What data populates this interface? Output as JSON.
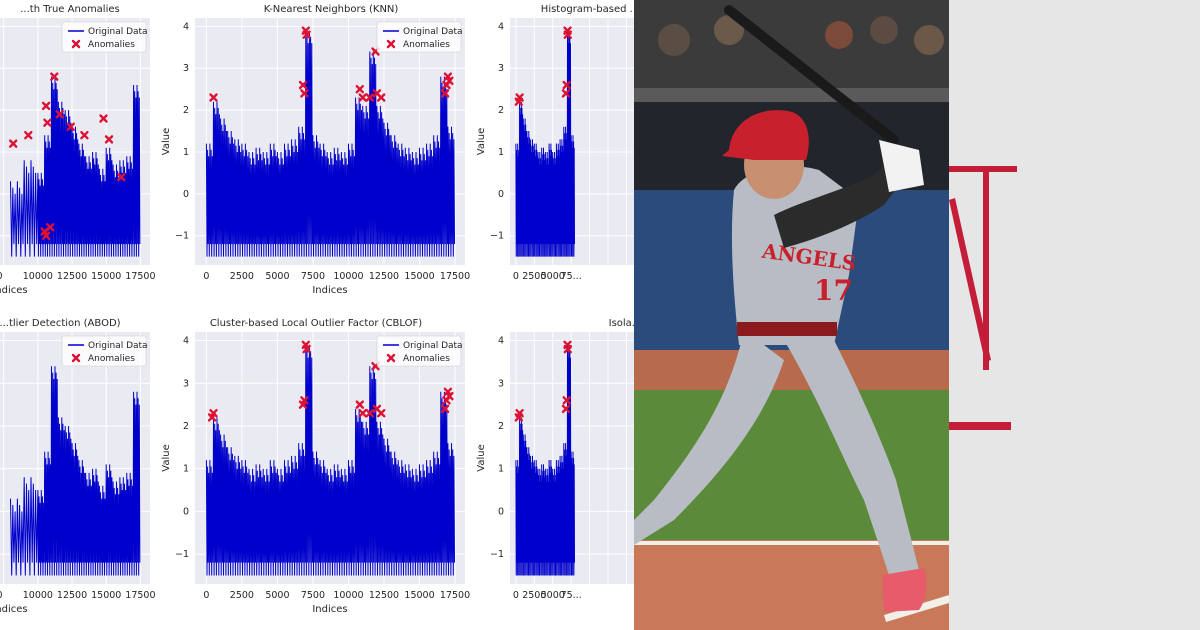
{
  "charts_panel": {
    "background": "#ffffff",
    "plot_background": "#eaeaf2",
    "grid_color": "#ffffff",
    "line_color": "#0000cc",
    "anomaly_color": "#dd1133"
  },
  "chart_data": [
    {
      "type": "line",
      "title": "...th True Anomalies",
      "xlabel": "Indices",
      "ylabel": "",
      "x_ticks": [
        "...00",
        "10000",
        "12500",
        "15000",
        "17500"
      ],
      "y_ticks": [],
      "legend": {
        "entries": [
          "Original Data",
          "Anomalies"
        ],
        "placement": "top-right"
      },
      "series": [
        {
          "name": "Original Data",
          "x": [
            8000,
            9000,
            10000,
            10500,
            11000,
            11500,
            12000,
            12500,
            13000,
            13500,
            14000,
            14500,
            15000,
            15500,
            16000,
            16500,
            17000,
            17500
          ],
          "values": [
            0.3,
            0.8,
            0.5,
            1.4,
            2.8,
            2.2,
            2.0,
            1.6,
            1.2,
            0.9,
            1.0,
            0.6,
            1.1,
            0.7,
            0.8,
            0.9,
            2.6,
            0.4
          ]
        },
        {
          "name": "Anomalies",
          "x": [
            8200,
            9300,
            10600,
            10700,
            11200,
            11600,
            12400,
            13400,
            14800,
            15200,
            16100,
            10900,
            10500,
            10600
          ],
          "values": [
            1.2,
            1.4,
            2.1,
            1.7,
            2.8,
            1.9,
            1.6,
            1.4,
            1.8,
            1.3,
            0.4,
            -0.8,
            -0.9,
            -1.0
          ]
        }
      ]
    },
    {
      "type": "line",
      "title": "K-Nearest Neighbors (KNN)",
      "xlabel": "Indices",
      "ylabel": "Value",
      "xlim": [
        -800,
        18200
      ],
      "ylim": [
        -1.7,
        4.2
      ],
      "x_ticks": [
        "0",
        "2500",
        "5000",
        "7500",
        "10000",
        "12500",
        "15000",
        "17500"
      ],
      "y_ticks": [
        "−1",
        "0",
        "1",
        "2",
        "3",
        "4"
      ],
      "legend": {
        "entries": [
          "Original Data",
          "Anomalies"
        ],
        "placement": "top-right"
      },
      "series": [
        {
          "name": "Original Data",
          "x": [
            0,
            500,
            1000,
            1500,
            2000,
            2500,
            3000,
            3500,
            4000,
            4500,
            5000,
            5500,
            6000,
            6500,
            7000,
            7500,
            8000,
            8500,
            9000,
            9500,
            10000,
            10500,
            11000,
            11500,
            12000,
            12500,
            13000,
            13500,
            14000,
            14500,
            15000,
            15500,
            16000,
            16500,
            17000,
            17500
          ],
          "values": [
            1.2,
            2.2,
            1.8,
            1.5,
            1.3,
            1.2,
            1.0,
            1.1,
            1.0,
            1.2,
            1.0,
            1.2,
            1.3,
            1.6,
            3.9,
            1.4,
            1.2,
            1.0,
            1.1,
            1.0,
            1.2,
            2.3,
            2.1,
            3.4,
            2.1,
            1.7,
            1.4,
            1.2,
            1.1,
            1.0,
            1.1,
            1.2,
            1.4,
            2.8,
            1.6,
            1.0
          ]
        },
        {
          "name": "Anomalies",
          "x": [
            500,
            6800,
            6900,
            7000,
            7050,
            10800,
            11000,
            11500,
            11900,
            12000,
            12300,
            16800,
            16900,
            17000,
            17100
          ],
          "values": [
            2.3,
            2.6,
            2.4,
            3.9,
            3.8,
            2.5,
            2.3,
            2.3,
            3.4,
            2.4,
            2.3,
            2.4,
            2.6,
            2.8,
            2.7
          ]
        }
      ]
    },
    {
      "type": "line",
      "title": "Histogram-based ...",
      "xlabel": "",
      "ylabel": "Value",
      "xlim": [
        -800,
        18200
      ],
      "ylim": [
        -1.7,
        4.2
      ],
      "x_ticks": [
        "0",
        "2500",
        "5000",
        "75..."
      ],
      "y_ticks": [
        "−1",
        "0",
        "1",
        "2",
        "3",
        "4"
      ],
      "legend": {
        "entries": [],
        "placement": "top-right"
      },
      "series": [
        {
          "name": "Original Data",
          "x": [
            0,
            500,
            1000,
            1500,
            2000,
            2500,
            3000,
            3500,
            4000,
            4500,
            5000,
            5500,
            6000,
            6500,
            7000,
            7500,
            8000
          ],
          "values": [
            1.2,
            2.2,
            1.8,
            1.5,
            1.3,
            1.2,
            1.0,
            1.1,
            1.0,
            1.2,
            1.0,
            1.2,
            1.3,
            1.6,
            3.9,
            1.4,
            1.2
          ]
        },
        {
          "name": "Anomalies",
          "x": [
            400,
            500,
            6800,
            6900,
            7000,
            7050
          ],
          "values": [
            2.2,
            2.3,
            2.4,
            2.6,
            3.9,
            3.8
          ]
        }
      ]
    },
    {
      "type": "line",
      "title": "...tlier Detection (ABOD)",
      "xlabel": "Indices",
      "ylabel": "",
      "x_ticks": [
        "...00",
        "10000",
        "12500",
        "15000",
        "17500"
      ],
      "y_ticks": [],
      "legend": {
        "entries": [
          "Original Data",
          "Anomalies"
        ],
        "placement": "top-right"
      },
      "series": [
        {
          "name": "Original Data",
          "x": [
            8000,
            9000,
            10000,
            10500,
            11000,
            11500,
            12000,
            12500,
            13000,
            13500,
            14000,
            14500,
            15000,
            15500,
            16000,
            16500,
            17000,
            17500
          ],
          "values": [
            0.3,
            0.8,
            0.5,
            1.4,
            3.4,
            2.2,
            2.0,
            1.6,
            1.2,
            0.9,
            1.0,
            0.6,
            1.1,
            0.7,
            0.8,
            0.9,
            2.8,
            0.4
          ]
        }
      ]
    },
    {
      "type": "line",
      "title": "Cluster-based Local Outlier Factor (CBLOF)",
      "xlabel": "Indices",
      "ylabel": "Value",
      "xlim": [
        -800,
        18200
      ],
      "ylim": [
        -1.7,
        4.2
      ],
      "x_ticks": [
        "0",
        "2500",
        "5000",
        "7500",
        "10000",
        "12500",
        "15000",
        "17500"
      ],
      "y_ticks": [
        "−1",
        "0",
        "1",
        "2",
        "3",
        "4"
      ],
      "legend": {
        "entries": [
          "Original Data",
          "Anomalies"
        ],
        "placement": "top-right"
      },
      "series": [
        {
          "name": "Original Data",
          "x": [
            0,
            500,
            1000,
            1500,
            2000,
            2500,
            3000,
            3500,
            4000,
            4500,
            5000,
            5500,
            6000,
            6500,
            7000,
            7500,
            8000,
            8500,
            9000,
            9500,
            10000,
            10500,
            11000,
            11500,
            12000,
            12500,
            13000,
            13500,
            14000,
            14500,
            15000,
            15500,
            16000,
            16500,
            17000,
            17500
          ],
          "values": [
            1.2,
            2.2,
            1.8,
            1.5,
            1.3,
            1.2,
            1.0,
            1.1,
            1.0,
            1.2,
            1.0,
            1.2,
            1.3,
            1.6,
            3.9,
            1.4,
            1.2,
            1.0,
            1.1,
            1.0,
            1.2,
            2.4,
            2.1,
            3.4,
            2.1,
            1.7,
            1.4,
            1.2,
            1.1,
            1.0,
            1.1,
            1.2,
            1.4,
            2.8,
            1.6,
            1.0
          ]
        },
        {
          "name": "Anomalies",
          "x": [
            400,
            500,
            6800,
            6900,
            7000,
            7050,
            10800,
            11000,
            11500,
            11900,
            12000,
            12300,
            16800,
            16900,
            17000,
            17100
          ],
          "values": [
            2.2,
            2.3,
            2.5,
            2.6,
            3.9,
            3.8,
            2.5,
            2.3,
            2.3,
            3.4,
            2.4,
            2.3,
            2.4,
            2.6,
            2.8,
            2.7
          ]
        }
      ]
    },
    {
      "type": "line",
      "title": "Isola...",
      "xlabel": "",
      "ylabel": "Value",
      "xlim": [
        -800,
        18200
      ],
      "ylim": [
        -1.7,
        4.2
      ],
      "x_ticks": [
        "0",
        "2500",
        "5000",
        "75..."
      ],
      "y_ticks": [
        "−1",
        "0",
        "1",
        "2",
        "3",
        "4"
      ],
      "legend": {
        "entries": [],
        "placement": "top-right"
      },
      "series": [
        {
          "name": "Original Data",
          "x": [
            0,
            500,
            1000,
            1500,
            2000,
            2500,
            3000,
            3500,
            4000,
            4500,
            5000,
            5500,
            6000,
            6500,
            7000,
            7500,
            8000
          ],
          "values": [
            1.2,
            2.2,
            1.8,
            1.5,
            1.3,
            1.2,
            1.0,
            1.1,
            1.0,
            1.2,
            1.0,
            1.2,
            1.3,
            1.6,
            3.9,
            1.4,
            1.2
          ]
        },
        {
          "name": "Anomalies",
          "x": [
            400,
            500,
            6800,
            6900,
            7000,
            7050
          ],
          "values": [
            2.2,
            2.3,
            2.4,
            2.6,
            3.9,
            3.8
          ]
        }
      ]
    }
  ],
  "photo": {
    "colors": {
      "grass": "#5b8a3a",
      "dirt": "#c9785a",
      "wall": "#2a4b7c",
      "crowd": "#3b3b3b",
      "uniform": "#b8bcc4",
      "helmet": "#c8202c",
      "bat": "#1a1a1a"
    },
    "jersey_text": "ANGELS",
    "jersey_number": "17"
  },
  "decoration": {
    "background": "#e6e6e6",
    "accent": "#c31d3a"
  }
}
